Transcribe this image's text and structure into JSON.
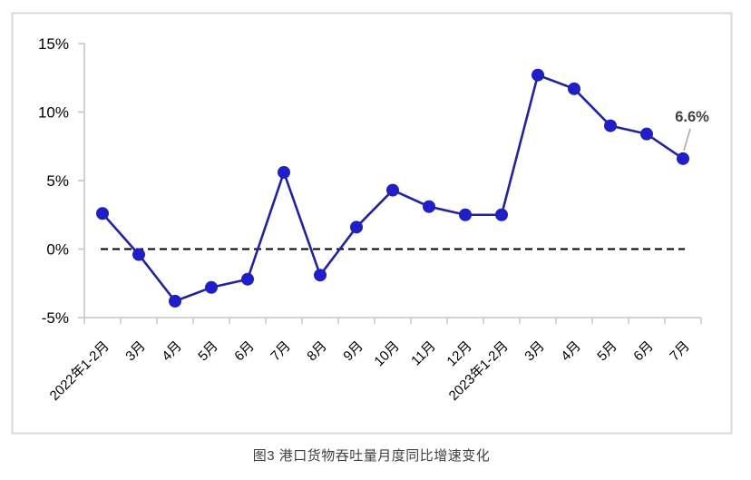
{
  "figure": {
    "caption": "图3 港口货物吞吐量月度同比增速变化"
  },
  "chart_data": {
    "type": "line",
    "title": "图3 港口货物吞吐量月度同比增速变化",
    "categories": [
      "2022年1-2月",
      "3月",
      "4月",
      "5月",
      "6月",
      "7月",
      "8月",
      "9月",
      "10月",
      "11月",
      "12月",
      "2023年1-2月",
      "3月",
      "4月",
      "5月",
      "6月",
      "7月"
    ],
    "series": [
      {
        "name": "港口货物吞吐量月度同比增速",
        "values": [
          2.6,
          -0.4,
          -3.8,
          -2.8,
          -2.2,
          5.6,
          -1.9,
          1.6,
          4.3,
          3.1,
          2.5,
          2.5,
          12.7,
          11.7,
          9.0,
          8.4,
          6.6
        ]
      }
    ],
    "xlabel": "",
    "ylabel": "",
    "ylim": [
      -5,
      15
    ],
    "y_ticks": [
      15,
      10,
      5,
      0,
      -5
    ],
    "y_tick_labels": [
      "15%",
      "10%",
      "5%",
      "0%",
      "-5%"
    ],
    "grid": "off",
    "legend": "none",
    "reference_line": {
      "value": 0,
      "style": "dashed",
      "color": "#000000"
    },
    "annotation": {
      "text": "6.6%",
      "category": "7月",
      "category_index": 16,
      "value": 6.6
    },
    "colors": {
      "line": "#23239B",
      "marker": "#1E1ECC",
      "axis": "#C6C6C6",
      "frame_border": "#DADADA",
      "tick_label": "#000000",
      "annotation_text": "#3F3F3F",
      "leader_line": "#ABABAB",
      "caption": "#404040"
    }
  }
}
